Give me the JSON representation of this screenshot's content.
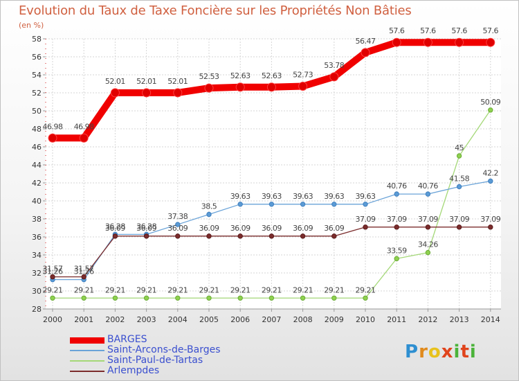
{
  "title": "Evolution du Taux de Taxe Foncière sur les Propriétés Non Bâties",
  "unit_label": "(en %)",
  "logo": {
    "letters": [
      "P",
      "r",
      "o",
      "x",
      "i",
      "t",
      "i"
    ],
    "colors": [
      "#2e8fd1",
      "#e08a1c",
      "#e8c21c",
      "#e0441c",
      "#4bb33a",
      "#e0441c",
      "#4bb33a"
    ]
  },
  "chart_data": {
    "type": "line",
    "title": "Evolution du Taux de Taxe Foncière sur les Propriétés Non Bâties",
    "ylabel": "(en %)",
    "xlabel": "",
    "x": [
      "2000",
      "2001",
      "2002",
      "2003",
      "2004",
      "2005",
      "2006",
      "2007",
      "2008",
      "2009",
      "2010",
      "2011",
      "2012",
      "2013",
      "2014"
    ],
    "ylim": [
      28,
      58
    ],
    "yticks": [
      28,
      30,
      32,
      34,
      36,
      38,
      40,
      42,
      44,
      46,
      48,
      50,
      52,
      54,
      56,
      58
    ],
    "grid": true,
    "legend_position": "bottom-left",
    "series": [
      {
        "name": "BARGES",
        "color": "#f00000",
        "values": [
          46.98,
          46.98,
          52.01,
          52.01,
          52.01,
          52.53,
          52.63,
          52.63,
          52.73,
          53.78,
          56.47,
          57.6,
          57.6,
          57.6,
          57.6
        ],
        "labels": [
          "46.98",
          "46.98",
          "52.01",
          "52.01",
          "52.01",
          "52.53",
          "52.63",
          "52.63",
          "52.73",
          "53.78",
          "56.47",
          "57.6",
          "57.6",
          "57.6",
          "57.6"
        ]
      },
      {
        "name": "Saint-Arcons-de-Barges",
        "color": "#5b9bd5",
        "values": [
          31.26,
          31.26,
          36.28,
          36.28,
          37.38,
          38.5,
          39.63,
          39.63,
          39.63,
          39.63,
          39.63,
          40.76,
          40.76,
          41.58,
          42.2
        ],
        "labels": [
          "31.26",
          "31.26",
          "36.28",
          "36.28",
          "37.38",
          "38.5",
          "39.63",
          "39.63",
          "39.63",
          "39.63",
          "39.63",
          "40.76",
          "40.76",
          "41.58",
          "42.2"
        ]
      },
      {
        "name": "Saint-Paul-de-Tartas",
        "color": "#99d165",
        "values": [
          29.21,
          29.21,
          29.21,
          29.21,
          29.21,
          29.21,
          29.21,
          29.21,
          29.21,
          29.21,
          29.21,
          33.59,
          34.26,
          45,
          50.09
        ],
        "labels": [
          "29.21",
          "29.21",
          "29.21",
          "29.21",
          "29.21",
          "29.21",
          "29.21",
          "29.21",
          "29.21",
          "29.21",
          "29.21",
          "33.59",
          "34.26",
          "45",
          "50.09"
        ]
      },
      {
        "name": "Arlempdes",
        "color": "#7b2c2c",
        "values": [
          31.57,
          31.57,
          36.09,
          36.09,
          36.09,
          36.09,
          36.09,
          36.09,
          36.09,
          36.09,
          37.09,
          37.09,
          37.09,
          37.09,
          37.09
        ],
        "labels": [
          "31.57",
          "31.57",
          "36.09",
          "36.09",
          "36.09",
          "36.09",
          "36.09",
          "36.09",
          "36.09",
          "36.09",
          "37.09",
          "37.09",
          "37.09",
          "37.09",
          "37.09"
        ]
      }
    ]
  }
}
